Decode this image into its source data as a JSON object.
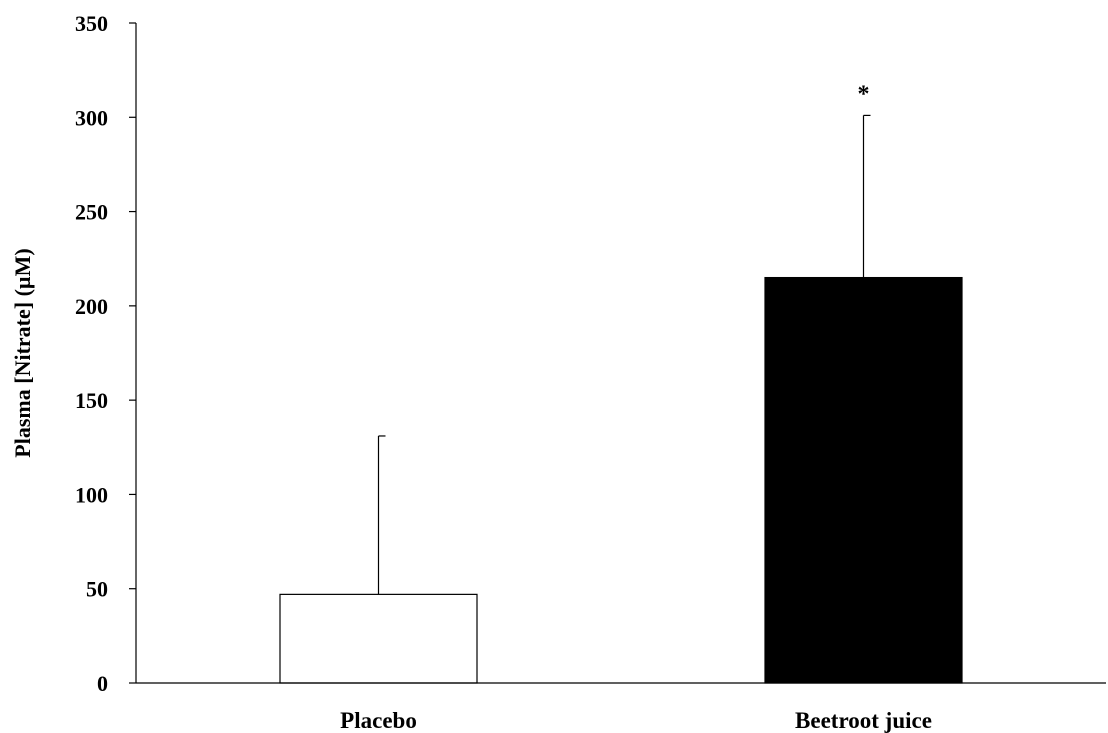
{
  "chart_data": {
    "type": "bar",
    "title": "",
    "xlabel": "",
    "ylabel": "Plasma [Nitrate] (µM)",
    "ylim": [
      0,
      350
    ],
    "yticks": [
      0,
      50,
      100,
      150,
      200,
      250,
      300,
      350
    ],
    "categories": [
      "Placebo",
      "Beetroot juice"
    ],
    "series": [
      {
        "values": [
          47,
          215
        ],
        "error_upper": [
          84,
          86
        ],
        "colors": [
          "#ffffff",
          "#000000"
        ]
      }
    ],
    "annotations": [
      {
        "category_index": 1,
        "text": "*"
      }
    ],
    "grid": false,
    "legend": "none"
  }
}
